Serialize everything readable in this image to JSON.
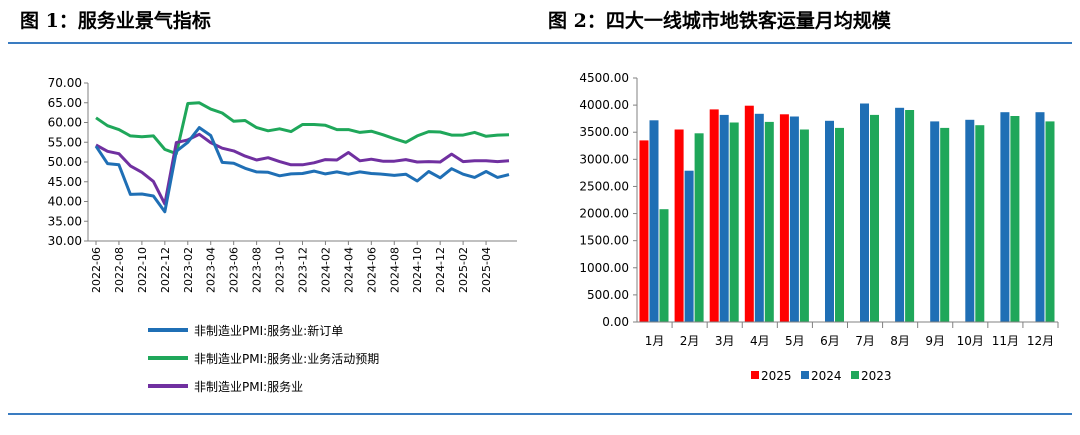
{
  "figures": {
    "left_title": "图 1：服务业景气指标",
    "right_title": "图 2：四大一线城市地铁客运量月均规模"
  },
  "chart_data": [
    {
      "type": "line",
      "title": "图 1：服务业景气指标",
      "xlabel": "",
      "ylabel": "",
      "ylim": [
        30,
        70
      ],
      "yticks": [
        "30.00",
        "35.00",
        "40.00",
        "45.00",
        "50.00",
        "55.00",
        "60.00",
        "65.00",
        "70.00"
      ],
      "xtick_labels": [
        "2022-06",
        "2022-08",
        "2022-10",
        "2022-12",
        "2023-02",
        "2023-04",
        "2023-06",
        "2023-08",
        "2023-10",
        "2023-12",
        "2024-02",
        "2024-04",
        "2024-06",
        "2024-08",
        "2024-10",
        "2024-12",
        "2025-02",
        "2025-04"
      ],
      "legend_position": "bottom",
      "grid": false,
      "series": [
        {
          "name": "非制造业PMI:服务业:新订单",
          "color": "#1f6fb5",
          "values": [
            54.0,
            49.6,
            49.3,
            41.8,
            41.9,
            41.4,
            37.4,
            52.7,
            55.0,
            58.7,
            56.7,
            49.9,
            49.7,
            48.4,
            47.5,
            47.4,
            46.5,
            47.0,
            47.1,
            47.7,
            47.0,
            47.5,
            46.9,
            47.5,
            47.1,
            46.9,
            46.6,
            46.9,
            45.2,
            47.6,
            46.0,
            48.3,
            46.9,
            46.1,
            47.6,
            46.1,
            46.8
          ]
        },
        {
          "name": "非制造业PMI:服务业:业务活动预期",
          "color": "#1fa75a",
          "values": [
            61.2,
            59.2,
            58.2,
            56.6,
            56.4,
            56.6,
            53.2,
            52.1,
            64.8,
            65.0,
            63.4,
            62.4,
            60.3,
            60.5,
            58.7,
            57.9,
            58.4,
            57.7,
            59.5,
            59.5,
            59.3,
            58.2,
            58.2,
            57.5,
            57.8,
            56.9,
            55.9,
            55.0,
            56.6,
            57.7,
            57.6,
            56.8,
            56.8,
            57.5,
            56.5,
            56.8,
            56.9
          ]
        },
        {
          "name": "非制造业PMI:服务业",
          "color": "#7030a0",
          "values": [
            54.3,
            52.7,
            52.1,
            49.0,
            47.4,
            45.1,
            39.4,
            54.9,
            55.6,
            57.0,
            54.9,
            53.5,
            52.8,
            51.5,
            50.5,
            51.1,
            50.1,
            49.3,
            49.3,
            49.8,
            50.6,
            50.5,
            52.4,
            50.3,
            50.7,
            50.2,
            50.2,
            50.6,
            50.0,
            50.1,
            50.0,
            52.0,
            50.1,
            50.3,
            50.3,
            50.1,
            50.3
          ]
        }
      ]
    },
    {
      "type": "bar",
      "title": "图 2：四大一线城市地铁客运量月均规模",
      "xlabel": "",
      "ylabel": "",
      "ylim": [
        0,
        4500
      ],
      "yticks": [
        "0.00",
        "500.00",
        "1000.00",
        "1500.00",
        "2000.00",
        "2500.00",
        "3000.00",
        "3500.00",
        "4000.00",
        "4500.00"
      ],
      "categories": [
        "1月",
        "2月",
        "3月",
        "4月",
        "5月",
        "6月",
        "7月",
        "8月",
        "9月",
        "10月",
        "11月",
        "12月"
      ],
      "legend_position": "bottom",
      "grid": false,
      "series": [
        {
          "name": "2025",
          "color": "#ff0000",
          "values": [
            3350,
            3550,
            3920,
            3990,
            3830,
            null,
            null,
            null,
            null,
            null,
            null,
            null
          ]
        },
        {
          "name": "2024",
          "color": "#1f6fb5",
          "values": [
            3720,
            2790,
            3820,
            3840,
            3790,
            3710,
            4030,
            3950,
            3700,
            3730,
            3870,
            3870
          ]
        },
        {
          "name": "2023",
          "color": "#1fa75a",
          "values": [
            2080,
            3480,
            3680,
            3690,
            3550,
            3580,
            3820,
            3910,
            3580,
            3630,
            3800,
            3700
          ]
        }
      ]
    }
  ]
}
